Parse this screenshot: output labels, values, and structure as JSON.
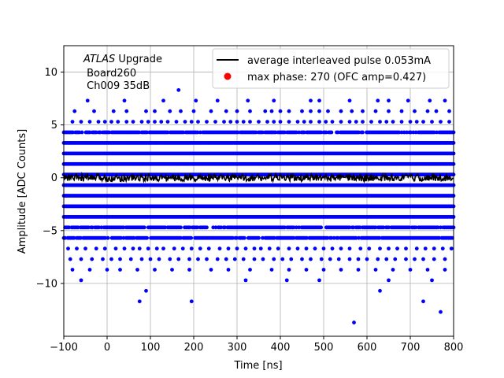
{
  "chart_data": {
    "type": "scatter",
    "xlabel": "Time [ns]",
    "ylabel": "Amplitude [ADC Counts]",
    "xlim": [
      -100,
      800
    ],
    "ylim": [
      -15,
      12.5
    ],
    "grid": true,
    "x_ticks": [
      -100,
      0,
      100,
      200,
      300,
      400,
      500,
      600,
      700,
      800
    ],
    "y_ticks": [
      -10,
      -5,
      0,
      5,
      10
    ],
    "x_tick_labels": [
      "−100",
      "0",
      "100",
      "200",
      "300",
      "400",
      "500",
      "600",
      "700",
      "800"
    ],
    "y_tick_labels": [
      "−10",
      "−5",
      "0",
      "5",
      "10"
    ],
    "annotation": {
      "italic": "ATLAS",
      "rest": " Upgrade",
      "line2": " Board260",
      "line3": " Ch009 35dB"
    },
    "legend": {
      "position": "top-right",
      "entries": [
        {
          "label": "average interleaved pulse 0.053mA",
          "color": "#000000",
          "marker": "line"
        },
        {
          "label": "max phase: 270 (OFC amp=0.427)",
          "color": "#ff0000",
          "marker": "circle"
        }
      ]
    },
    "series": [
      {
        "kind": "scatter",
        "color": "#0000ff",
        "dense_levels": [
          4.3,
          3.3,
          2.3,
          1.3,
          0.3,
          -0.7,
          -1.7,
          -2.7,
          -3.7,
          -4.7,
          -5.7
        ],
        "sparse_levels": [
          {
            "y": 5.3,
            "x": [
              -80,
              -60,
              -40,
              -20,
              -5,
              10,
              25,
              45,
              60,
              80,
              95,
              110,
              125,
              140,
              160,
              180,
              195,
              210,
              230,
              250,
              270,
              285,
              300,
              315,
              330,
              350,
              370,
              385,
              400,
              420,
              440,
              455,
              470,
              490,
              505,
              520,
              540,
              560,
              575,
              590,
              610,
              630,
              645,
              660,
              680,
              700,
              715,
              730,
              750,
              770,
              790
            ]
          },
          {
            "y": 6.3,
            "x": [
              -75,
              -30,
              15,
              45,
              90,
              110,
              145,
              170,
              200,
              240,
              275,
              300,
              330,
              365,
              380,
              400,
              420,
              450,
              470,
              490,
              510,
              540,
              565,
              590,
              620,
              650,
              680,
              710,
              740,
              760,
              790
            ]
          },
          {
            "y": 7.3,
            "x": [
              -45,
              40,
              130,
              205,
              255,
              325,
              385,
              470,
              490,
              560,
              625,
              650,
              695,
              745,
              780
            ]
          },
          {
            "y": 8.3,
            "x": [
              165
            ]
          },
          {
            "y": -6.7,
            "x": [
              -90,
              -70,
              -50,
              -25,
              -5,
              20,
              40,
              60,
              75,
              95,
              115,
              130,
              155,
              175,
              195,
              215,
              235,
              260,
              280,
              300,
              320,
              340,
              355,
              375,
              395,
              420,
              440,
              460,
              480,
              500,
              520,
              540,
              560,
              585,
              605,
              630,
              650,
              670,
              690,
              715,
              735,
              755,
              775,
              795
            ]
          },
          {
            "y": -7.7,
            "x": [
              -85,
              -60,
              -35,
              -10,
              10,
              30,
              55,
              80,
              100,
              120,
              145,
              165,
              190,
              210,
              230,
              255,
              275,
              295,
              315,
              340,
              360,
              385,
              405,
              425,
              450,
              470,
              495,
              515,
              535,
              560,
              580,
              600,
              625,
              645,
              665,
              690,
              710,
              730,
              755,
              780
            ]
          },
          {
            "y": -8.7,
            "x": [
              -80,
              -40,
              0,
              30,
              70,
              110,
              150,
              190,
              240,
              280,
              330,
              380,
              420,
              460,
              500,
              540,
              580,
              620,
              660,
              700,
              740,
              780
            ]
          },
          {
            "y": -9.7,
            "x": [
              -60,
              320,
              415,
              490,
              650,
              750
            ]
          },
          {
            "y": -10.7,
            "x": [
              90,
              630
            ]
          },
          {
            "y": -11.7,
            "x": [
              75,
              195,
              730
            ]
          },
          {
            "y": -12.7,
            "x": [
              770
            ]
          },
          {
            "y": -13.7,
            "x": [
              570
            ]
          }
        ],
        "x_step": 3
      },
      {
        "kind": "line",
        "name": "average interleaved pulse 0.053mA",
        "color": "#000000",
        "x": [
          -100,
          800
        ],
        "y": [
          0,
          0
        ],
        "noise_amplitude": 0.35
      }
    ]
  }
}
